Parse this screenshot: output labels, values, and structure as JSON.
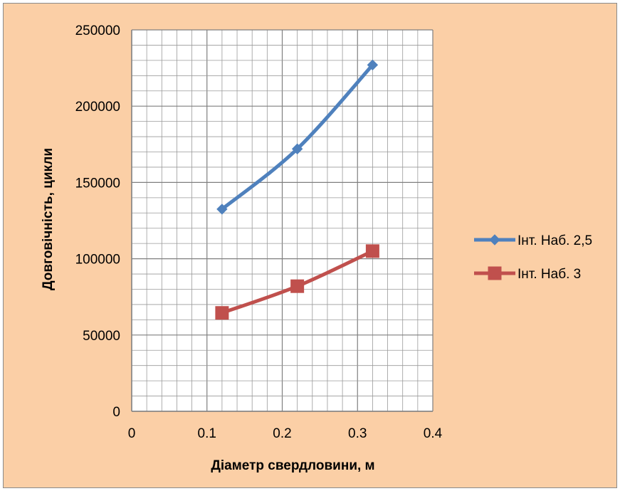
{
  "chart_data": {
    "type": "line",
    "title": "",
    "xlabel": "Діаметр свердловини, м",
    "ylabel": "Довговічність, цикли",
    "xlim": [
      0,
      0.4
    ],
    "ylim": [
      0,
      250000
    ],
    "x_ticks": [
      "0",
      "0.1",
      "0.2",
      "0.3",
      "0.4"
    ],
    "y_ticks": [
      "0",
      "50000",
      "100000",
      "150000",
      "200000",
      "250000"
    ],
    "grid": true,
    "legend_position": "right",
    "background_color": "#fbcfa6",
    "plot_background": "#ffffff",
    "series": [
      {
        "name": "Інт. Наб. 2,5",
        "color": "#4f81bd",
        "marker": "diamond",
        "x": [
          0.12,
          0.22,
          0.32
        ],
        "values": [
          132500,
          172000,
          227000
        ]
      },
      {
        "name": "Інт. Наб. 3",
        "color": "#c0504d",
        "marker": "square",
        "x": [
          0.12,
          0.22,
          0.32
        ],
        "values": [
          64500,
          82000,
          105000
        ]
      }
    ]
  }
}
